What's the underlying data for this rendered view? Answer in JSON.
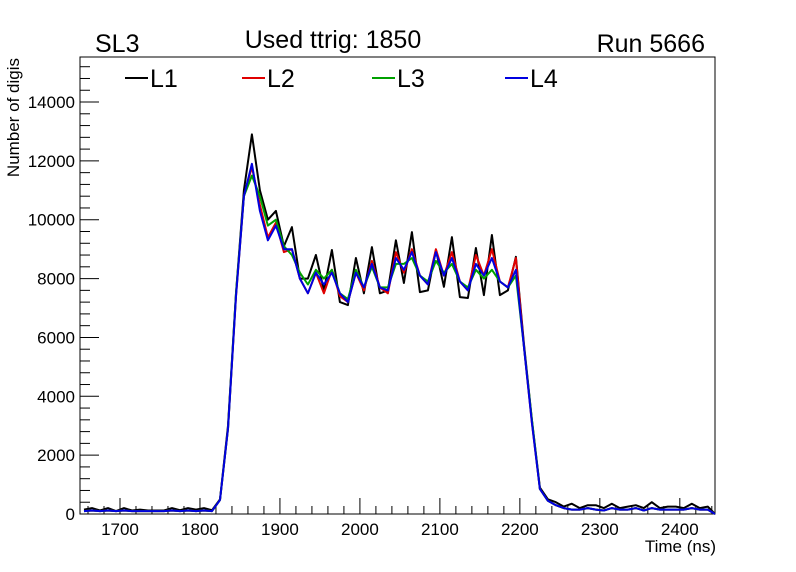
{
  "chart_data": {
    "type": "line",
    "title": "Used ttrig: 1850",
    "left_label": "SL3",
    "right_label": "Run 5666",
    "xlabel": "Time (ns)",
    "ylabel": "Number of digis",
    "xlim": [
      1650,
      2444
    ],
    "ylim": [
      0,
      15530
    ],
    "xticks": [
      1700,
      1800,
      1900,
      2000,
      2100,
      2200,
      2300,
      2400
    ],
    "yticks": [
      0,
      2000,
      4000,
      6000,
      8000,
      10000,
      12000,
      14000
    ],
    "legend_position": "top",
    "grid": false,
    "x_start": 1655,
    "x_step": 10,
    "series": [
      {
        "name": "L1",
        "color": "#000000",
        "values": [
          150,
          200,
          120,
          200,
          100,
          200,
          120,
          150,
          120,
          120,
          120,
          200,
          130,
          200,
          150,
          200,
          130,
          500,
          3000,
          7500,
          11000,
          12900,
          11000,
          10000,
          10300,
          9100,
          9750,
          8000,
          8000,
          8800,
          7600,
          8970,
          7200,
          7100,
          8700,
          7500,
          9070,
          7500,
          7600,
          9300,
          7850,
          9580,
          7540,
          7600,
          8970,
          7720,
          9410,
          7370,
          7340,
          9040,
          7440,
          9480,
          7440,
          7600,
          8740,
          5800,
          3200,
          900,
          500,
          400,
          250,
          350,
          200,
          300,
          300,
          200,
          350,
          200,
          250,
          300,
          200,
          400,
          200,
          250,
          250,
          200,
          350,
          200,
          250,
          0
        ]
      },
      {
        "name": "L2",
        "color": "#e00000",
        "values": [
          100,
          120,
          100,
          120,
          100,
          120,
          100,
          100,
          100,
          100,
          100,
          120,
          100,
          120,
          100,
          120,
          100,
          480,
          2900,
          7400,
          10800,
          11800,
          10500,
          9400,
          9900,
          8900,
          9000,
          8000,
          7500,
          8200,
          7500,
          8300,
          7400,
          7200,
          8200,
          7600,
          8600,
          7700,
          7500,
          8900,
          8200,
          9000,
          8100,
          7800,
          9000,
          8100,
          8900,
          7900,
          7600,
          8800,
          8100,
          9000,
          7900,
          7700,
          8700,
          5700,
          3100,
          850,
          450,
          300,
          200,
          150,
          150,
          200,
          150,
          120,
          200,
          150,
          150,
          200,
          120,
          200,
          150,
          150,
          150,
          150,
          200,
          150,
          150,
          0
        ]
      },
      {
        "name": "L3",
        "color": "#00a000",
        "values": [
          100,
          120,
          100,
          120,
          100,
          120,
          100,
          100,
          100,
          100,
          100,
          120,
          100,
          120,
          100,
          120,
          100,
          480,
          2900,
          7500,
          10800,
          11500,
          10800,
          9800,
          10000,
          9100,
          8800,
          8200,
          7800,
          8300,
          8000,
          8300,
          7500,
          7300,
          8300,
          7700,
          8400,
          7700,
          7700,
          8500,
          8500,
          8700,
          8100,
          7900,
          8600,
          8200,
          8500,
          7900,
          7700,
          8300,
          8000,
          8300,
          7900,
          7700,
          8100,
          5700,
          3200,
          850,
          450,
          300,
          200,
          150,
          150,
          200,
          150,
          120,
          200,
          150,
          150,
          200,
          120,
          200,
          150,
          150,
          150,
          150,
          200,
          150,
          150,
          0
        ]
      },
      {
        "name": "L4",
        "color": "#0000e0",
        "values": [
          100,
          120,
          100,
          120,
          100,
          120,
          100,
          100,
          100,
          100,
          100,
          120,
          100,
          120,
          100,
          120,
          100,
          480,
          2900,
          7400,
          10800,
          11900,
          10300,
          9300,
          9800,
          9000,
          9000,
          8000,
          7500,
          8200,
          7800,
          8200,
          7500,
          7200,
          8200,
          7700,
          8500,
          7700,
          7600,
          8700,
          8300,
          8900,
          8100,
          7800,
          8900,
          8100,
          8700,
          7900,
          7600,
          8500,
          8100,
          8700,
          7900,
          7700,
          8300,
          5700,
          3100,
          850,
          450,
          300,
          200,
          150,
          150,
          200,
          150,
          120,
          200,
          150,
          150,
          200,
          120,
          200,
          150,
          150,
          150,
          150,
          200,
          150,
          150,
          0
        ]
      }
    ]
  }
}
